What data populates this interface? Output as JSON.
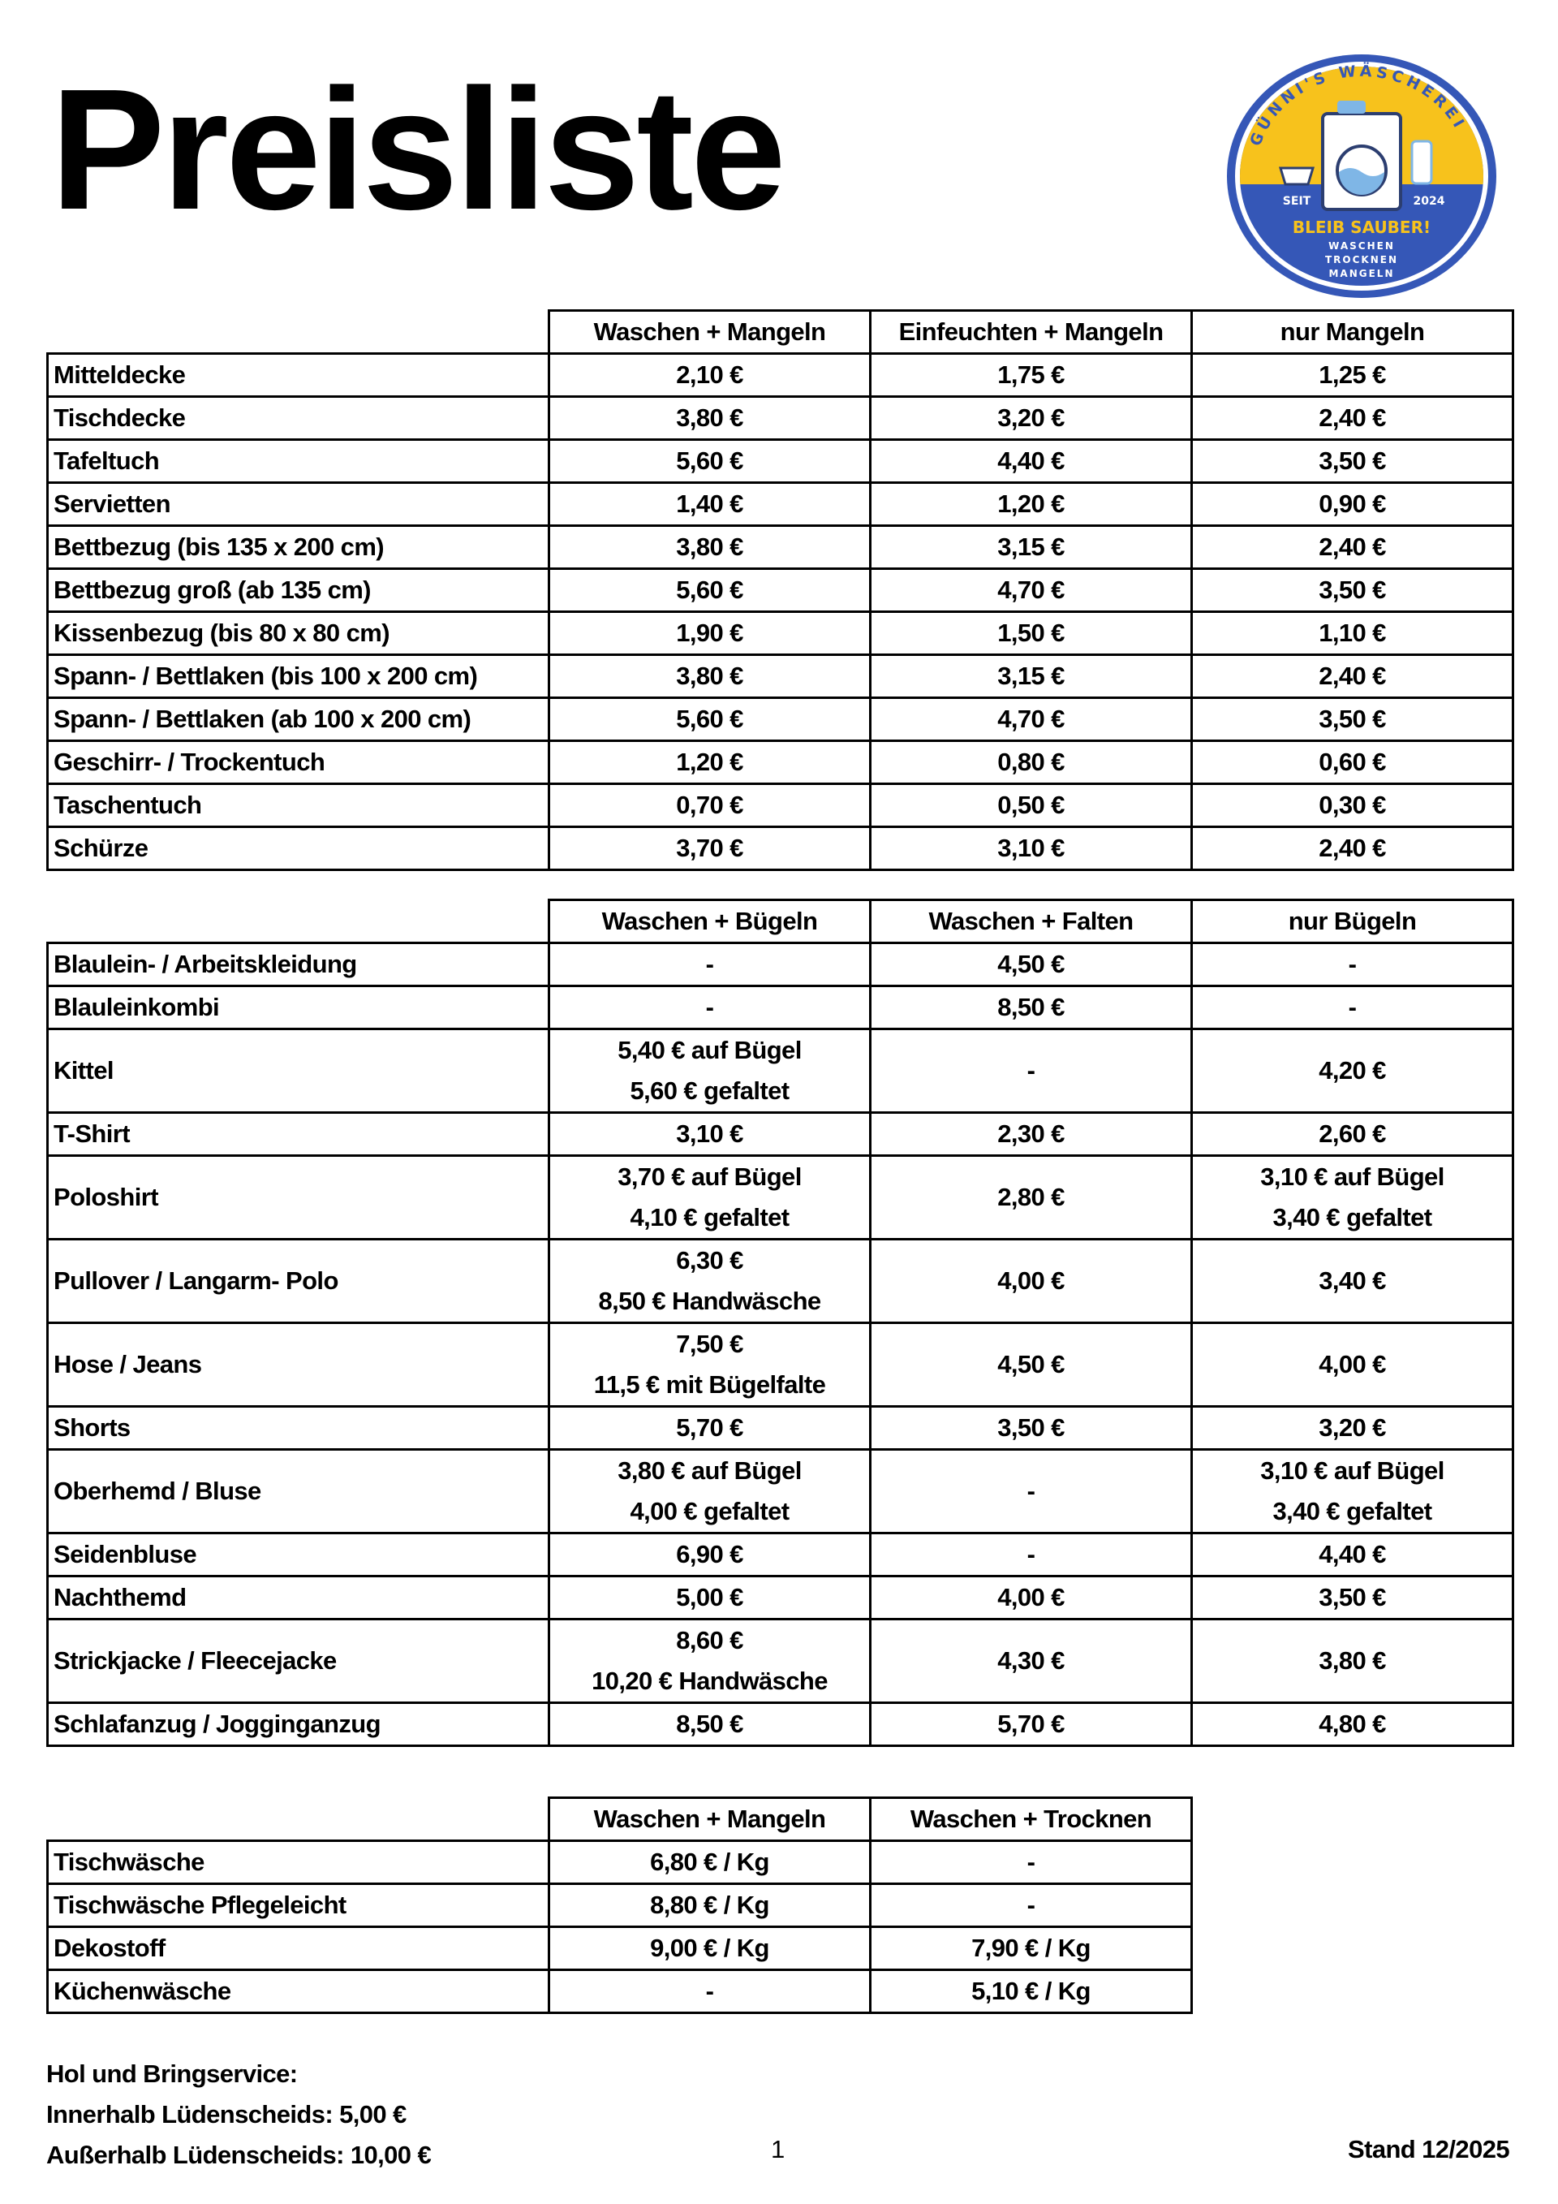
{
  "title": "Preisliste",
  "logo": {
    "brand": "GÜNNI'S WÄSCHEREI",
    "seit": "SEIT",
    "year": "2024",
    "slogan": "BLEIB SAUBER!",
    "services": [
      "WASCHEN",
      "TROCKNEN",
      "MANGELN"
    ],
    "colors": {
      "blue": "#3557b7",
      "yellow": "#f7c21c",
      "light_blue": "#7fb6e6"
    }
  },
  "table1": {
    "headers": [
      "Waschen + Mangeln",
      "Einfeuchten + Mangeln",
      "nur Mangeln"
    ],
    "rows": [
      {
        "name": "Mitteldecke",
        "values": [
          "2,10 €",
          "1,75 €",
          "1,25 €"
        ]
      },
      {
        "name": "Tischdecke",
        "values": [
          "3,80 €",
          "3,20 €",
          "2,40 €"
        ]
      },
      {
        "name": "Tafeltuch",
        "values": [
          "5,60 €",
          "4,40 €",
          "3,50 €"
        ]
      },
      {
        "name": "Servietten",
        "values": [
          "1,40 €",
          "1,20 €",
          "0,90 €"
        ]
      },
      {
        "name": "Bettbezug (bis 135 x 200 cm)",
        "values": [
          "3,80 €",
          "3,15 €",
          "2,40 €"
        ]
      },
      {
        "name": "Bettbezug groß (ab 135 cm)",
        "values": [
          "5,60 €",
          "4,70 €",
          "3,50 €"
        ]
      },
      {
        "name": "Kissenbezug (bis 80 x 80 cm)",
        "values": [
          "1,90 €",
          "1,50 €",
          "1,10 €"
        ]
      },
      {
        "name": "Spann- / Bettlaken (bis 100 x 200 cm)",
        "values": [
          "3,80 €",
          "3,15 €",
          "2,40 €"
        ]
      },
      {
        "name": "Spann- / Bettlaken (ab 100 x 200 cm)",
        "values": [
          "5,60 €",
          "4,70 €",
          "3,50 €"
        ]
      },
      {
        "name": "Geschirr- / Trockentuch",
        "values": [
          "1,20 €",
          "0,80 €",
          "0,60 €"
        ]
      },
      {
        "name": "Taschentuch",
        "values": [
          "0,70 €",
          "0,50 €",
          "0,30 €"
        ]
      },
      {
        "name": "Schürze",
        "values": [
          "3,70 €",
          "3,10 €",
          "2,40 €"
        ]
      }
    ]
  },
  "table2": {
    "headers": [
      "Waschen + Bügeln",
      "Waschen + Falten",
      "nur Bügeln"
    ],
    "rows": [
      {
        "name": "Blaulein- / Arbeitskleidung",
        "values": [
          [
            "-"
          ],
          [
            "4,50 €"
          ],
          [
            "-"
          ]
        ]
      },
      {
        "name": "Blauleinkombi",
        "values": [
          [
            "-"
          ],
          [
            "8,50 €"
          ],
          [
            "-"
          ]
        ]
      },
      {
        "name": "Kittel",
        "values": [
          [
            "5,40 € auf Bügel",
            "5,60 € gefaltet"
          ],
          [
            "-"
          ],
          [
            "4,20 €"
          ]
        ]
      },
      {
        "name": "T-Shirt",
        "values": [
          [
            "3,10 €"
          ],
          [
            "2,30 €"
          ],
          [
            "2,60 €"
          ]
        ]
      },
      {
        "name": "Poloshirt",
        "values": [
          [
            "3,70 € auf Bügel",
            "4,10 € gefaltet"
          ],
          [
            "2,80 €"
          ],
          [
            "3,10 € auf Bügel",
            "3,40 € gefaltet"
          ]
        ]
      },
      {
        "name": "Pullover / Langarm- Polo",
        "values": [
          [
            "6,30 €",
            "8,50 € Handwäsche"
          ],
          [
            "4,00 €"
          ],
          [
            "3,40 €"
          ]
        ]
      },
      {
        "name": "Hose / Jeans",
        "values": [
          [
            "7,50 €",
            "11,5 € mit Bügelfalte"
          ],
          [
            "4,50 €"
          ],
          [
            "4,00 €"
          ]
        ]
      },
      {
        "name": "Shorts",
        "values": [
          [
            "5,70 €"
          ],
          [
            "3,50 €"
          ],
          [
            "3,20 €"
          ]
        ]
      },
      {
        "name": "Oberhemd / Bluse",
        "values": [
          [
            "3,80 € auf Bügel",
            "4,00 € gefaltet"
          ],
          [
            "-"
          ],
          [
            "3,10 € auf Bügel",
            "3,40 € gefaltet"
          ]
        ]
      },
      {
        "name": "Seidenbluse",
        "values": [
          [
            "6,90 €"
          ],
          [
            "-"
          ],
          [
            "4,40 €"
          ]
        ]
      },
      {
        "name": "Nachthemd",
        "values": [
          [
            "5,00 €"
          ],
          [
            "4,00 €"
          ],
          [
            "3,50 €"
          ]
        ]
      },
      {
        "name": "Strickjacke / Fleecejacke",
        "values": [
          [
            "8,60 €",
            "10,20 € Handwäsche"
          ],
          [
            "4,30 €"
          ],
          [
            "3,80 €"
          ]
        ]
      },
      {
        "name": "Schlafanzug / Jogginganzug",
        "values": [
          [
            "8,50 €"
          ],
          [
            "5,70 €"
          ],
          [
            "4,80 €"
          ]
        ]
      }
    ]
  },
  "table3": {
    "headers": [
      "Waschen + Mangeln",
      "Waschen + Trocknen"
    ],
    "rows": [
      {
        "name": "Tischwäsche",
        "values": [
          "6,80 € / Kg",
          "-"
        ]
      },
      {
        "name": "Tischwäsche Pflegeleicht",
        "values": [
          "8,80 € / Kg",
          "-"
        ]
      },
      {
        "name": "Dekostoff",
        "values": [
          "9,00 € / Kg",
          "7,90 € / Kg"
        ]
      },
      {
        "name": "Küchenwäsche",
        "values": [
          "-",
          "5,10 € / Kg"
        ]
      }
    ]
  },
  "footer": {
    "service_title": "Hol und Bringservice:",
    "inside": "Innerhalb Lüdenscheids: 5,00 €",
    "outside": "Außerhalb Lüdenscheids: 10,00 €",
    "page_number": "1",
    "stand": "Stand 12/2025"
  }
}
